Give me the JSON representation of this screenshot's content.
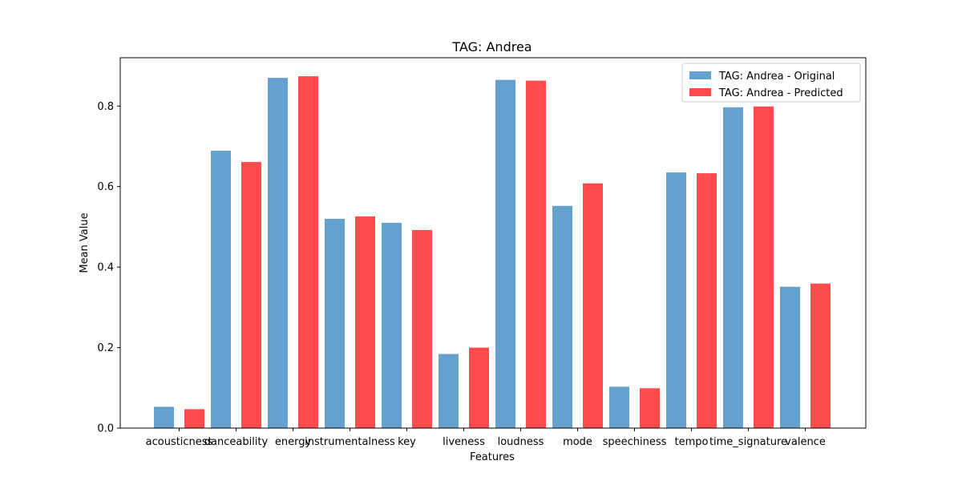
{
  "chart_data": {
    "type": "bar",
    "title": "TAG: Andrea",
    "xlabel": "Features",
    "ylabel": "Mean Value",
    "ylim": [
      0,
      0.92
    ],
    "yticks": [
      0.0,
      0.2,
      0.4,
      0.6,
      0.8
    ],
    "ytick_labels": [
      "0.0",
      "0.2",
      "0.4",
      "0.6",
      "0.8"
    ],
    "grid": false,
    "legend_position": "top-right",
    "categories": [
      "acousticness",
      "danceability",
      "energy",
      "instrumentalness",
      "key",
      "liveness",
      "loudness",
      "mode",
      "speechiness",
      "tempo",
      "time_signature",
      "valence"
    ],
    "series": [
      {
        "name": "TAG: Andrea - Original",
        "color": "#3a86c2",
        "opacity": 0.78,
        "values": [
          0.053,
          0.689,
          0.87,
          0.52,
          0.51,
          0.184,
          0.865,
          0.552,
          0.103,
          0.635,
          0.797,
          0.351
        ]
      },
      {
        "name": "TAG: Andrea - Predicted",
        "color": "#ff4d4d",
        "opacity": 1.0,
        "values": [
          0.047,
          0.661,
          0.874,
          0.526,
          0.492,
          0.2,
          0.863,
          0.608,
          0.099,
          0.633,
          0.799,
          0.359
        ]
      }
    ]
  }
}
